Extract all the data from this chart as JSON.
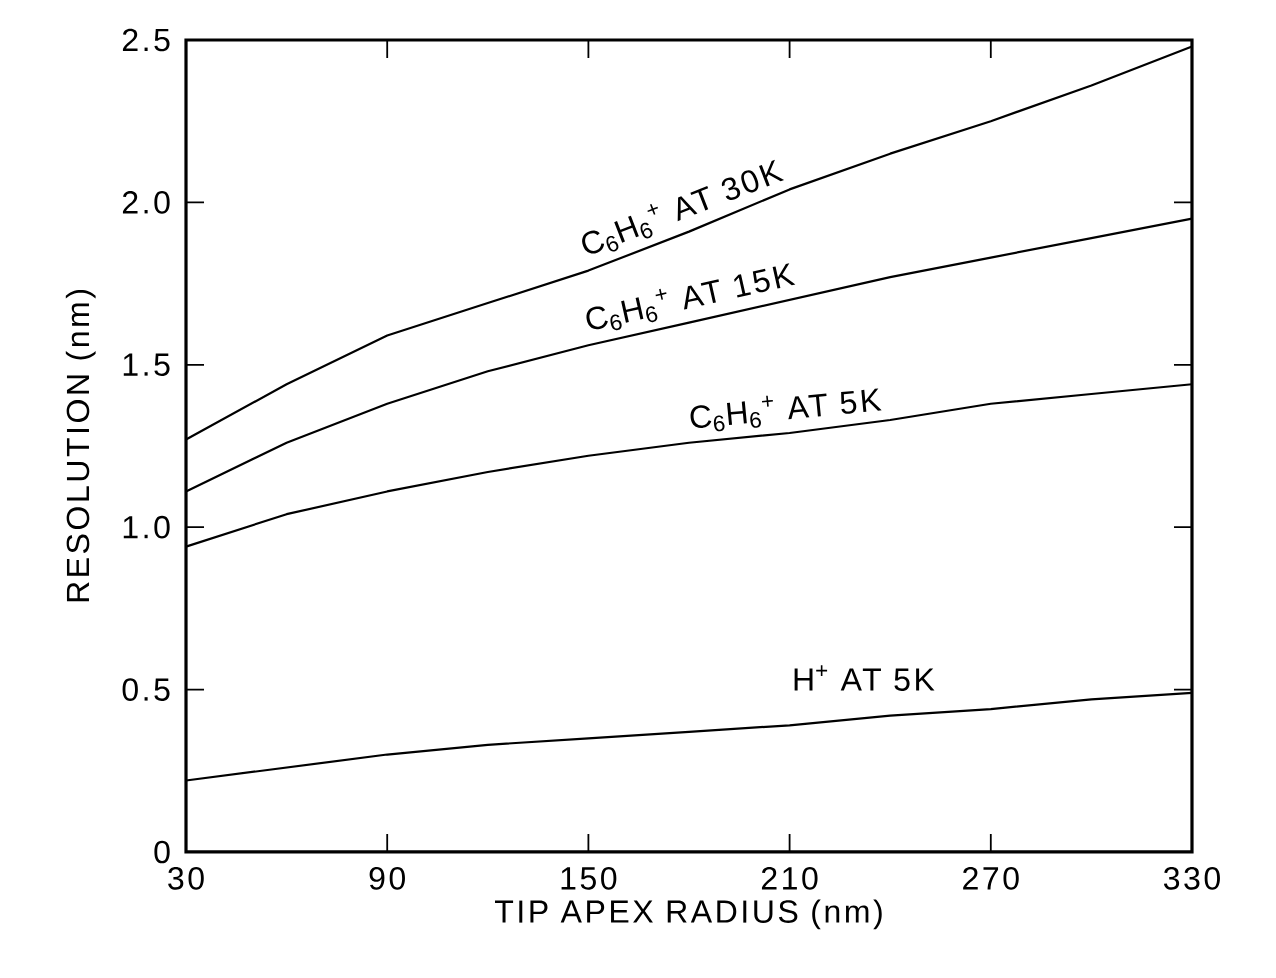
{
  "chart_data": {
    "type": "line",
    "xlabel": "TIP APEX RADIUS (nm)",
    "ylabel": "RESOLUTION (nm)",
    "x": [
      30,
      60,
      90,
      120,
      150,
      180,
      210,
      240,
      270,
      300,
      330
    ],
    "series": [
      {
        "name": "C$_{6}$H$_{6}$$^{+}$ AT 30K",
        "color": "#000000",
        "values": [
          1.27,
          1.44,
          1.59,
          1.69,
          1.79,
          1.91,
          2.04,
          2.15,
          2.25,
          2.36,
          2.48
        ]
      },
      {
        "name": "C$_{6}$H$_{6}$$^{+}$ AT 15K",
        "color": "#000000",
        "values": [
          1.11,
          1.26,
          1.38,
          1.48,
          1.56,
          1.63,
          1.7,
          1.77,
          1.83,
          1.89,
          1.95
        ]
      },
      {
        "name": "C$_{6}$H$_{6}$$^{+}$ AT 5K",
        "color": "#000000",
        "values": [
          0.94,
          1.04,
          1.11,
          1.17,
          1.22,
          1.26,
          1.29,
          1.33,
          1.38,
          1.41,
          1.44
        ]
      },
      {
        "name": "H$^{+}$ AT 5K",
        "color": "#000000",
        "values": [
          0.22,
          0.26,
          0.3,
          0.33,
          0.35,
          0.37,
          0.39,
          0.42,
          0.44,
          0.47,
          0.49
        ]
      }
    ],
    "xlim": [
      30,
      330
    ],
    "xticks": [
      30,
      90,
      150,
      210,
      270,
      330
    ],
    "ylim": [
      0,
      2.5
    ],
    "yticks": [
      0,
      {
        "value": 0.5,
        "label": "0.5"
      },
      {
        "value": 1,
        "label": "1.0"
      },
      {
        "value": 1.5,
        "label": "1.5"
      },
      {
        "value": 2,
        "label": "2.0"
      },
      {
        "value": 2.5,
        "label": "2.5"
      }
    ],
    "grid": false,
    "legend": false,
    "marker": "none",
    "line_style": "solid"
  }
}
